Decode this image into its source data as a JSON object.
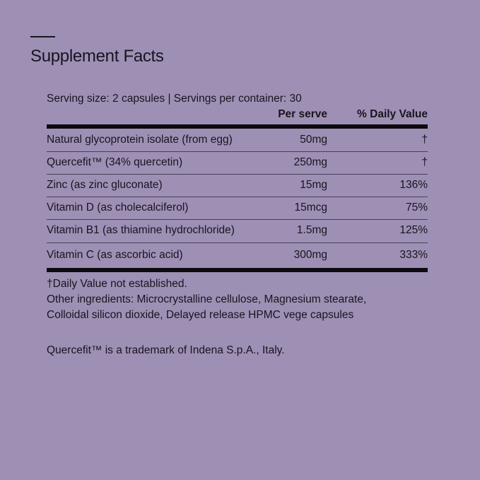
{
  "title": "Supplement Facts",
  "serving": "Serving size: 2 capsules | Servings per container: 30",
  "headers": {
    "per_serve": "Per serve",
    "daily_value": "% Daily Value"
  },
  "rows": [
    {
      "name": "Natural glycoprotein isolate (from egg)",
      "amount": "50mg",
      "dv": "†"
    },
    {
      "name": "Quercefit™ (34% quercetin)",
      "amount": "250mg",
      "dv": "†"
    },
    {
      "name": "Zinc (as zinc gluconate)",
      "amount": "15mg",
      "dv": "136%"
    },
    {
      "name": "Vitamin D (as cholecalciferol)",
      "amount": "15mcg",
      "dv": "75%"
    },
    {
      "name": "Vitamin B1 (as thiamine hydrochloride)",
      "amount": "1.5mg",
      "dv": "125%"
    },
    {
      "name": "Vitamin C (as ascorbic acid)",
      "amount": "300mg",
      "dv": "333%"
    }
  ],
  "footnotes": {
    "dv_note": "†Daily Value not established.",
    "other_ingredients": "Other ingredients: Microcrystalline cellulose, Magnesium stearate, Colloidal silicon dioxide, Delayed release HPMC vege capsules",
    "trademark": "Quercefit™ is a trademark of Indena S.p.A., Italy."
  }
}
